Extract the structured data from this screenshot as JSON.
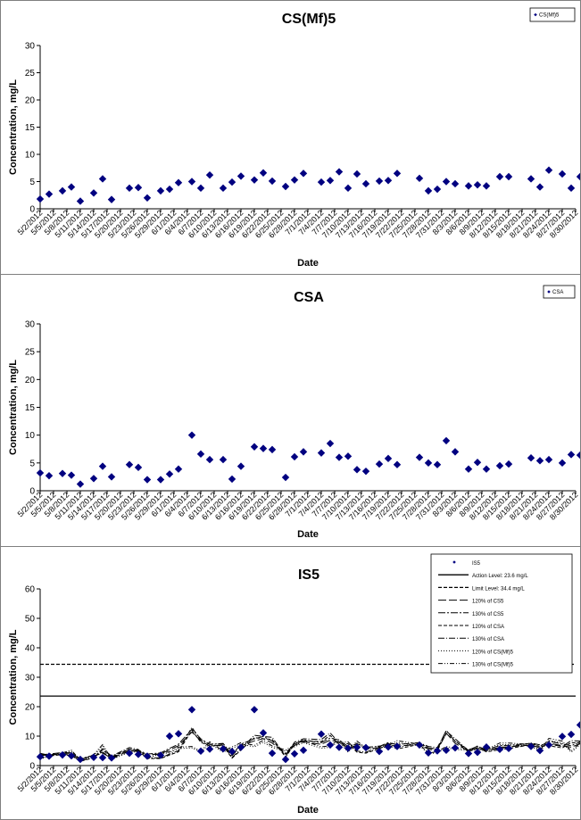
{
  "dates": [
    "5/2/2012",
    "5/5/2012",
    "5/8/2012",
    "5/11/2012",
    "5/14/2012",
    "5/17/2012",
    "5/20/2012",
    "5/23/2012",
    "5/26/2012",
    "5/29/2012",
    "6/1/2012",
    "6/4/2012",
    "6/7/2012",
    "6/10/2012",
    "6/13/2012",
    "6/16/2012",
    "6/19/2012",
    "6/22/2012",
    "6/25/2012",
    "6/28/2012",
    "7/1/2012",
    "7/4/2012",
    "7/7/2012",
    "7/10/2012",
    "7/13/2012",
    "7/16/2012",
    "7/19/2012",
    "7/22/2012",
    "7/25/2012",
    "7/28/2012",
    "7/31/2012",
    "8/3/2012",
    "8/6/2012",
    "8/9/2012",
    "8/12/2012",
    "8/15/2012",
    "8/18/2012",
    "8/21/2012",
    "8/24/2012",
    "8/27/2012",
    "8/30/2012"
  ],
  "chart_data": [
    {
      "type": "scatter",
      "title": "CS(Mf)5",
      "xlabel": "Date",
      "ylabel": "Concentration, mg/L",
      "ylim": [
        0,
        30
      ],
      "yticks": [
        0,
        5,
        10,
        15,
        20,
        25,
        30
      ],
      "legend": [
        "CS(Mf)5"
      ],
      "legend_position": "top-right",
      "marker_color": "#000080",
      "series": [
        {
          "name": "CS(Mf)5",
          "x": [
            "5/2/2012",
            "5/4/2012",
            "5/7/2012",
            "5/9/2012",
            "5/11/2012",
            "5/14/2012",
            "5/16/2012",
            "5/18/2012",
            "5/22/2012",
            "5/24/2012",
            "5/26/2012",
            "5/29/2012",
            "5/31/2012",
            "6/2/2012",
            "6/5/2012",
            "6/7/2012",
            "6/9/2012",
            "6/12/2012",
            "6/14/2012",
            "6/16/2012",
            "6/19/2012",
            "6/21/2012",
            "6/23/2012",
            "6/26/2012",
            "6/28/2012",
            "6/30/2012",
            "7/4/2012",
            "7/6/2012",
            "7/8/2012",
            "7/10/2012",
            "7/12/2012",
            "7/14/2012",
            "7/17/2012",
            "7/19/2012",
            "7/21/2012",
            "7/26/2012",
            "7/28/2012",
            "7/30/2012",
            "8/1/2012",
            "8/3/2012",
            "8/6/2012",
            "8/8/2012",
            "8/10/2012",
            "8/13/2012",
            "8/15/2012",
            "8/20/2012",
            "8/22/2012",
            "8/24/2012",
            "8/27/2012",
            "8/29/2012",
            "8/31/2012"
          ],
          "y": [
            1.8,
            2.7,
            3.3,
            4.0,
            1.4,
            2.9,
            5.5,
            1.7,
            3.8,
            3.9,
            2.0,
            3.3,
            3.6,
            4.8,
            5.0,
            3.8,
            6.2,
            3.8,
            4.9,
            6.0,
            5.3,
            6.6,
            5.1,
            4.1,
            5.3,
            6.5,
            4.9,
            5.2,
            6.8,
            3.8,
            6.4,
            4.6,
            5.1,
            5.2,
            6.5,
            5.6,
            3.3,
            3.6,
            5.0,
            4.6,
            4.2,
            4.4,
            4.2,
            5.9,
            5.9,
            5.5,
            4.0,
            7.1,
            6.4,
            3.8,
            5.9
          ]
        }
      ]
    },
    {
      "type": "scatter",
      "title": "CSA",
      "xlabel": "Date",
      "ylabel": "Concentration, mg/L",
      "ylim": [
        0,
        30
      ],
      "yticks": [
        0,
        5,
        10,
        15,
        20,
        25,
        30
      ],
      "legend": [
        "CSA"
      ],
      "legend_position": "top-right",
      "marker_color": "#000080",
      "series": [
        {
          "name": "CSA",
          "x": [
            "5/2/2012",
            "5/4/2012",
            "5/7/2012",
            "5/9/2012",
            "5/11/2012",
            "5/14/2012",
            "5/16/2012",
            "5/18/2012",
            "5/22/2012",
            "5/24/2012",
            "5/26/2012",
            "5/29/2012",
            "5/31/2012",
            "6/2/2012",
            "6/5/2012",
            "6/7/2012",
            "6/9/2012",
            "6/12/2012",
            "6/14/2012",
            "6/16/2012",
            "6/19/2012",
            "6/21/2012",
            "6/23/2012",
            "6/26/2012",
            "6/28/2012",
            "6/30/2012",
            "7/4/2012",
            "7/6/2012",
            "7/8/2012",
            "7/10/2012",
            "7/12/2012",
            "7/14/2012",
            "7/17/2012",
            "7/19/2012",
            "7/21/2012",
            "7/26/2012",
            "7/28/2012",
            "7/30/2012",
            "8/1/2012",
            "8/3/2012",
            "8/6/2012",
            "8/8/2012",
            "8/10/2012",
            "8/13/2012",
            "8/15/2012",
            "8/20/2012",
            "8/22/2012",
            "8/24/2012",
            "8/27/2012",
            "8/29/2012",
            "8/31/2012"
          ],
          "y": [
            3.2,
            2.7,
            3.1,
            2.8,
            1.2,
            2.2,
            4.4,
            2.5,
            4.7,
            4.2,
            2.0,
            2.0,
            3.0,
            3.9,
            10.0,
            6.6,
            5.6,
            5.6,
            2.1,
            4.4,
            7.9,
            7.6,
            7.4,
            2.4,
            6.1,
            7.0,
            6.8,
            8.5,
            6.0,
            6.2,
            3.8,
            3.5,
            4.8,
            5.8,
            4.7,
            6.0,
            5.0,
            4.7,
            9.0,
            7.0,
            3.9,
            5.1,
            3.9,
            4.5,
            4.8,
            5.9,
            5.4,
            5.6,
            5.0,
            6.5,
            6.4
          ]
        }
      ]
    },
    {
      "type": "scatter",
      "title": "IS5",
      "xlabel": "Date",
      "ylabel": "Concentration, mg/L",
      "ylim": [
        0,
        60
      ],
      "yticks": [
        0,
        10,
        20,
        30,
        40,
        50,
        60
      ],
      "legend": [
        "IS5",
        "Action Level: 23.6 mg/L",
        "Limit Level: 34.4 mg/L",
        "120% of CS5",
        "130% of CS5",
        "120% of CSA",
        "130% of CSA",
        "120% of CS(Mf)5",
        "130% of CS(Mf)5"
      ],
      "legend_position": "top-right",
      "marker_color": "#000080",
      "action_level": 23.6,
      "limit_level": 34.4,
      "series": [
        {
          "name": "IS5",
          "x": [
            "5/2/2012",
            "5/4/2012",
            "5/7/2012",
            "5/9/2012",
            "5/11/2012",
            "5/14/2012",
            "5/16/2012",
            "5/18/2012",
            "5/22/2012",
            "5/24/2012",
            "5/26/2012",
            "5/29/2012",
            "5/31/2012",
            "6/2/2012",
            "6/5/2012",
            "6/7/2012",
            "6/9/2012",
            "6/12/2012",
            "6/14/2012",
            "6/16/2012",
            "6/19/2012",
            "6/21/2012",
            "6/23/2012",
            "6/26/2012",
            "6/28/2012",
            "6/30/2012",
            "7/4/2012",
            "7/6/2012",
            "7/8/2012",
            "7/10/2012",
            "7/12/2012",
            "7/14/2012",
            "7/17/2012",
            "7/19/2012",
            "7/21/2012",
            "7/26/2012",
            "7/28/2012",
            "7/30/2012",
            "8/1/2012",
            "8/3/2012",
            "8/6/2012",
            "8/8/2012",
            "8/10/2012",
            "8/13/2012",
            "8/15/2012",
            "8/20/2012",
            "8/22/2012",
            "8/24/2012",
            "8/27/2012",
            "8/29/2012",
            "8/31/2012"
          ],
          "y": [
            3.0,
            3.2,
            3.6,
            3.3,
            2.1,
            2.8,
            2.7,
            2.6,
            4.2,
            3.8,
            3.2,
            3.5,
            10.0,
            10.8,
            19.0,
            4.9,
            5.6,
            5.7,
            4.8,
            6.2,
            19.0,
            11.1,
            4.2,
            2.1,
            4.0,
            5.2,
            10.7,
            7.0,
            6.2,
            5.9,
            6.2,
            6.1,
            4.8,
            6.3,
            6.5,
            7.0,
            4.3,
            5.0,
            5.2,
            6.0,
            4.1,
            4.5,
            6.3,
            5.5,
            5.8,
            6.5,
            5.1,
            7.0,
            9.9,
            10.6,
            13.8
          ]
        }
      ],
      "cs5_values": [
        2.8,
        3.0,
        3.4,
        3.3,
        1.8,
        2.7,
        3.5,
        2.1,
        4.2,
        4.0,
        3.0,
        3.3,
        4.5,
        5.6,
        9.5,
        7.0,
        5.5,
        5.8,
        2.8,
        5.6,
        7.0,
        7.6,
        6.4,
        3.2,
        5.7,
        6.7,
        6.0,
        7.2,
        6.7,
        5.0,
        5.7,
        4.8,
        5.0,
        6.0,
        5.5,
        6.0,
        4.6,
        4.2,
        9.2,
        6.3,
        4.1,
        5.0,
        4.2,
        5.2,
        5.3,
        5.8,
        5.0,
        6.4,
        5.6,
        5.2,
        6.2
      ]
    }
  ]
}
